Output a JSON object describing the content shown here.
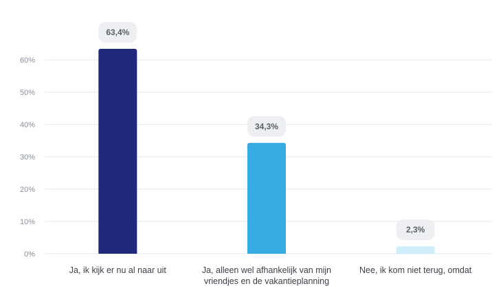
{
  "chart_data": {
    "type": "bar",
    "categories": [
      [
        "Ja, ik kijk er nu al naar uit"
      ],
      [
        "Ja, alleen wel afhankelijk van mijn",
        "vriendjes en de vakantieplanning"
      ],
      [
        "Nee, ik kom niet terug, omdat"
      ]
    ],
    "values": [
      63.4,
      34.3,
      2.3
    ],
    "value_labels": [
      "63,4%",
      "34,3%",
      "2,3%"
    ],
    "bar_colors": [
      "#1f2a7c",
      "#38aae3",
      "#cfeef9"
    ],
    "ylim": [
      0,
      65
    ],
    "yticks": [
      0,
      10,
      20,
      30,
      40,
      50,
      60
    ],
    "ytick_labels": [
      "0%",
      "10%",
      "20%",
      "30%",
      "40%",
      "50%",
      "60%"
    ],
    "grid": true,
    "legend": "none"
  }
}
